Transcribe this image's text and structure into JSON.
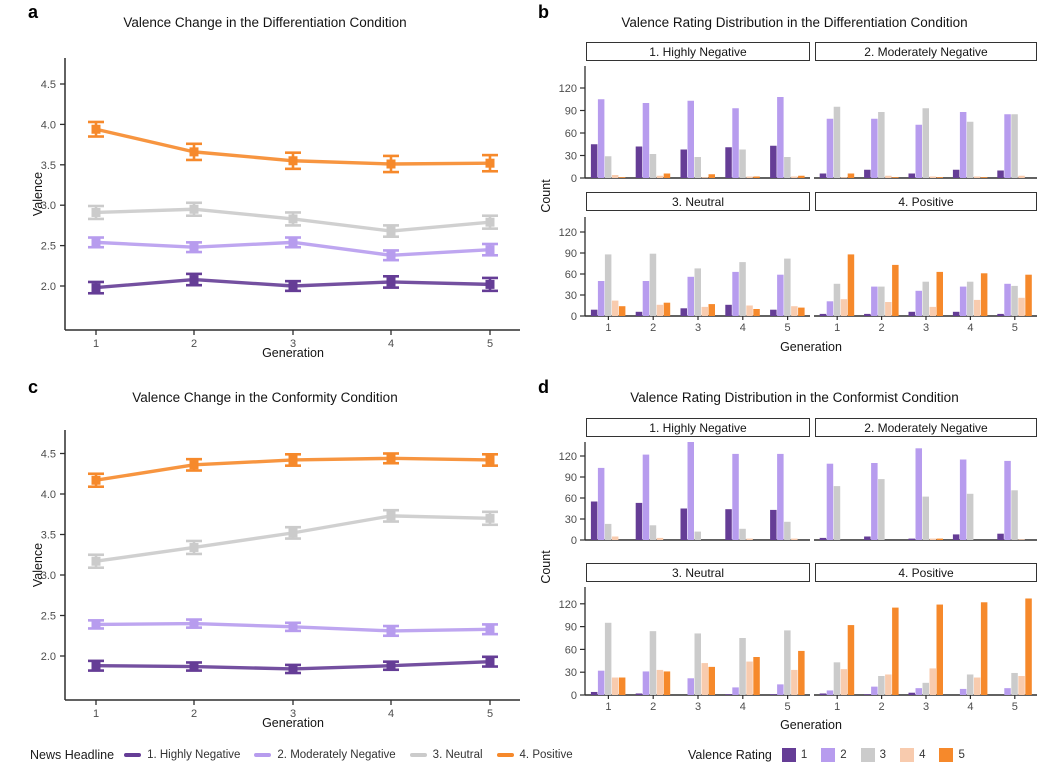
{
  "panel_labels": {
    "a": "a",
    "b": "b",
    "c": "c",
    "d": "d"
  },
  "palette": {
    "rating1_dark_purple": "#653D96",
    "rating2_light_purple": "#B79CEE",
    "rating3_gray": "#CBCBCB",
    "rating4_peach": "#F8CBAE",
    "rating5_orange": "#F6892B",
    "axis_line": "#2E2E2E",
    "tick_text": "#4D4D4D"
  },
  "legend_news": {
    "title": "News Headline",
    "items": [
      {
        "label": "1. Highly Negative",
        "color": "#653D96"
      },
      {
        "label": "2. Moderately Negative",
        "color": "#B79CEE"
      },
      {
        "label": "3. Neutral",
        "color": "#CBCBCB"
      },
      {
        "label": "4. Positive",
        "color": "#F6892B"
      }
    ]
  },
  "legend_rating": {
    "title": "Valence Rating",
    "items": [
      {
        "label": "1",
        "color": "#653D96"
      },
      {
        "label": "2",
        "color": "#B79CEE"
      },
      {
        "label": "3",
        "color": "#CBCBCB"
      },
      {
        "label": "4",
        "color": "#F8CBAE"
      },
      {
        "label": "5",
        "color": "#F6892B"
      }
    ]
  },
  "chart_data": [
    {
      "id": "a",
      "type": "line",
      "title": "Valence Change in the Differentiation Condition",
      "xlabel": "Generation",
      "ylabel": "Valence",
      "x": [
        1,
        2,
        3,
        4,
        5
      ],
      "xticks": [
        "1",
        "2",
        "3",
        "4",
        "5"
      ],
      "yticks": [
        2.0,
        2.5,
        3.0,
        3.5,
        4.0,
        4.5
      ],
      "ylim": [
        1.5,
        4.8
      ],
      "grid": false,
      "error_bars": true,
      "series": [
        {
          "name": "1. Highly Negative",
          "color": "#653D96",
          "values": [
            1.98,
            2.08,
            2.0,
            2.05,
            2.02
          ],
          "errors": [
            0.07,
            0.07,
            0.06,
            0.07,
            0.08
          ]
        },
        {
          "name": "2. Moderately Negative",
          "color": "#B79CEE",
          "values": [
            2.54,
            2.48,
            2.54,
            2.38,
            2.45
          ],
          "errors": [
            0.06,
            0.06,
            0.06,
            0.06,
            0.07
          ]
        },
        {
          "name": "3. Neutral",
          "color": "#CBCBCB",
          "values": [
            2.91,
            2.95,
            2.83,
            2.68,
            2.79
          ],
          "errors": [
            0.08,
            0.08,
            0.08,
            0.07,
            0.08
          ]
        },
        {
          "name": "4. Positive",
          "color": "#F6892B",
          "values": [
            3.94,
            3.66,
            3.55,
            3.51,
            3.52
          ],
          "errors": [
            0.09,
            0.1,
            0.1,
            0.1,
            0.1
          ]
        }
      ]
    },
    {
      "id": "b",
      "type": "bar",
      "title": "Valence Rating Distribution in the Differentiation Condition",
      "xlabel": "Generation",
      "ylabel": "Count",
      "categories": [
        1,
        2,
        3,
        4,
        5
      ],
      "xticks": [
        "1",
        "2",
        "3",
        "4",
        "5"
      ],
      "yticks": [
        0,
        30,
        60,
        90,
        120
      ],
      "ylim": [
        0,
        147
      ],
      "legend_position": "bottom",
      "series_labels": [
        "1",
        "2",
        "3",
        "4",
        "5"
      ],
      "facets": [
        {
          "label": "1. Highly Negative",
          "values": [
            [
              45,
              105,
              29,
              4,
              1
            ],
            [
              42,
              100,
              32,
              3,
              6
            ],
            [
              38,
              103,
              28,
              1,
              5
            ],
            [
              41,
              93,
              38,
              2,
              2
            ],
            [
              43,
              108,
              28,
              2,
              3
            ]
          ]
        },
        {
          "label": "2. Moderately Negative",
          "values": [
            [
              6,
              79,
              95,
              1,
              6
            ],
            [
              11,
              79,
              88,
              3,
              1
            ],
            [
              6,
              71,
              93,
              2,
              1
            ],
            [
              11,
              88,
              75,
              2,
              1
            ],
            [
              10,
              85,
              85,
              3,
              0
            ]
          ]
        },
        {
          "label": "3. Neutral",
          "values": [
            [
              9,
              50,
              88,
              22,
              14
            ],
            [
              6,
              50,
              89,
              16,
              19
            ],
            [
              11,
              56,
              68,
              13,
              17
            ],
            [
              16,
              63,
              77,
              15,
              10
            ],
            [
              9,
              59,
              82,
              14,
              12
            ]
          ]
        },
        {
          "label": "4. Positive",
          "values": [
            [
              3,
              21,
              46,
              24,
              88
            ],
            [
              3,
              42,
              42,
              20,
              73
            ],
            [
              6,
              36,
              49,
              13,
              63
            ],
            [
              6,
              42,
              49,
              23,
              61
            ],
            [
              3,
              46,
              43,
              26,
              59
            ]
          ]
        }
      ]
    },
    {
      "id": "c",
      "type": "line",
      "title": "Valence Change in the Conformity Condition",
      "xlabel": "Generation",
      "ylabel": "Valence",
      "x": [
        1,
        2,
        3,
        4,
        5
      ],
      "xticks": [
        "1",
        "2",
        "3",
        "4",
        "5"
      ],
      "yticks": [
        2.0,
        2.5,
        3.0,
        3.5,
        4.0,
        4.5
      ],
      "ylim": [
        1.5,
        4.8
      ],
      "grid": false,
      "error_bars": true,
      "series": [
        {
          "name": "1. Highly Negative",
          "color": "#653D96",
          "values": [
            1.88,
            1.87,
            1.84,
            1.88,
            1.93
          ],
          "errors": [
            0.06,
            0.05,
            0.05,
            0.05,
            0.06
          ]
        },
        {
          "name": "2. Moderately Negative",
          "color": "#B79CEE",
          "values": [
            2.39,
            2.4,
            2.36,
            2.31,
            2.33
          ],
          "errors": [
            0.05,
            0.05,
            0.05,
            0.06,
            0.06
          ]
        },
        {
          "name": "3. Neutral",
          "color": "#CBCBCB",
          "values": [
            3.17,
            3.34,
            3.52,
            3.73,
            3.7
          ],
          "errors": [
            0.08,
            0.08,
            0.07,
            0.07,
            0.08
          ]
        },
        {
          "name": "4. Positive",
          "color": "#F6892B",
          "values": [
            4.17,
            4.36,
            4.42,
            4.44,
            4.42
          ],
          "errors": [
            0.08,
            0.07,
            0.07,
            0.06,
            0.07
          ]
        }
      ]
    },
    {
      "id": "d",
      "type": "bar",
      "title": "Valence Rating Distribution in the Conformist Condition",
      "xlabel": "Generation",
      "ylabel": "Count",
      "categories": [
        1,
        2,
        3,
        4,
        5
      ],
      "xticks": [
        "1",
        "2",
        "3",
        "4",
        "5"
      ],
      "yticks": [
        0,
        30,
        60,
        90,
        120
      ],
      "ylim": [
        0,
        147
      ],
      "legend_position": "bottom",
      "series_labels": [
        "1",
        "2",
        "3",
        "4",
        "5"
      ],
      "facets": [
        {
          "label": "1. Highly Negative",
          "values": [
            [
              55,
              103,
              23,
              5,
              0
            ],
            [
              53,
              122,
              21,
              3,
              0
            ],
            [
              45,
              140,
              12,
              0,
              0
            ],
            [
              44,
              123,
              16,
              2,
              0
            ],
            [
              43,
              123,
              26,
              2,
              0
            ]
          ]
        },
        {
          "label": "2. Moderately Negative",
          "values": [
            [
              3,
              109,
              77,
              0,
              0
            ],
            [
              5,
              110,
              87,
              0,
              0
            ],
            [
              2,
              131,
              62,
              2,
              2
            ],
            [
              8,
              115,
              66,
              0,
              0
            ],
            [
              9,
              113,
              71,
              1,
              0
            ]
          ]
        },
        {
          "label": "3. Neutral",
          "values": [
            [
              4,
              32,
              95,
              23,
              23
            ],
            [
              2,
              31,
              84,
              33,
              31
            ],
            [
              0,
              22,
              81,
              42,
              37
            ],
            [
              1,
              10,
              75,
              44,
              50
            ],
            [
              1,
              14,
              85,
              33,
              58
            ]
          ]
        },
        {
          "label": "4. Positive",
          "values": [
            [
              2,
              6,
              43,
              34,
              92
            ],
            [
              1,
              11,
              25,
              27,
              115
            ],
            [
              3,
              9,
              16,
              35,
              119
            ],
            [
              0,
              8,
              27,
              23,
              122
            ],
            [
              0,
              9,
              29,
              25,
              127
            ]
          ]
        }
      ]
    }
  ]
}
